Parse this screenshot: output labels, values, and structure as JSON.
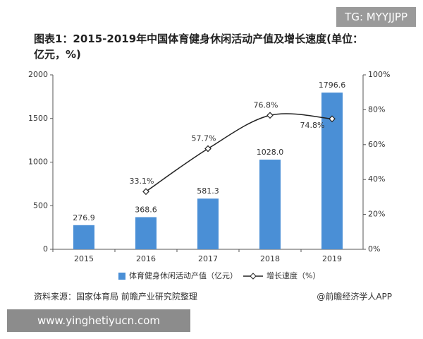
{
  "chart_data": {
    "type": "bar",
    "title": "图表1：2015-2019年中国体育健身休闲活动产值及增长速度(单位：亿元，%)",
    "categories": [
      "2015",
      "2016",
      "2017",
      "2018",
      "2019"
    ],
    "series": [
      {
        "name": "体育健身休闲活动产值（亿元）",
        "type": "bar",
        "color": "#4a8fd6",
        "values": [
          276.9,
          368.6,
          581.3,
          1028.0,
          1796.6
        ],
        "value_labels": [
          "276.9",
          "368.6",
          "581.3",
          "1028.0",
          "1796.6"
        ]
      },
      {
        "name": "增长速度（%）",
        "type": "line",
        "axis": "y2",
        "color": "#222222",
        "values": [
          null,
          33.1,
          57.7,
          76.8,
          74.8
        ],
        "value_labels": [
          null,
          "33.1%",
          "57.7%",
          "76.8%",
          "74.8%"
        ]
      }
    ],
    "ylim": [
      0,
      2000
    ],
    "yticks": [
      0,
      500,
      1000,
      1500,
      2000
    ],
    "y2lim": [
      0,
      100
    ],
    "y2ticks": [
      {
        "value": 0,
        "label": "0%"
      },
      {
        "value": 20,
        "label": "20%"
      },
      {
        "value": 40,
        "label": "40%"
      },
      {
        "value": 60,
        "label": "60%"
      },
      {
        "value": 80,
        "label": "80%"
      },
      {
        "value": 100,
        "label": "100%"
      }
    ],
    "grid": false
  },
  "footer": {
    "source": "资料来源：国家体育局 前瞻产业研究院整理",
    "credit": "@前瞻经济学人APP"
  },
  "watermarks": {
    "tg": "TG: MYYJJPP",
    "site": "www.yinghetiyucn.com"
  }
}
